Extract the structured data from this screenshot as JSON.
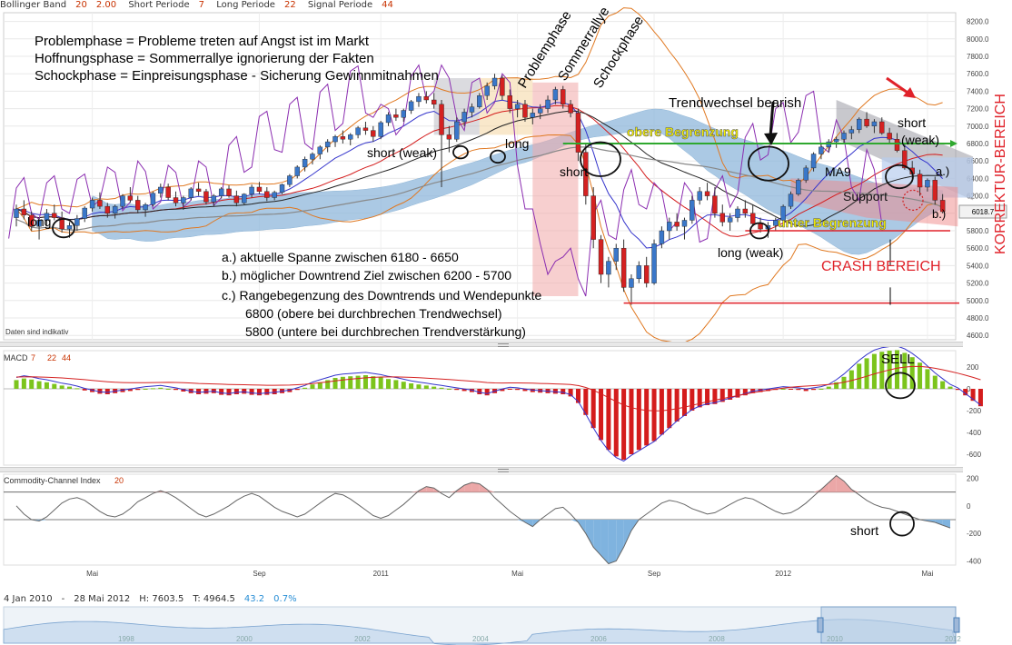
{
  "header": {
    "boll_label": "Bollinger Band",
    "boll_p1": "20",
    "boll_p2": "2.00",
    "short_label": "Short Periode",
    "short_val": "7",
    "long_label": "Long Periode",
    "long_val": "22",
    "signal_label": "Signal Periode",
    "signal_val": "44"
  },
  "colors": {
    "up": "#3a77c9",
    "down": "#d42121",
    "cloud": "#8fb8dc",
    "macd_pos": "#7cc41c",
    "macd_neg": "#d41c1c",
    "cci_pos": "#eba7a7",
    "cci_neg": "#7fb3df",
    "bb_outer": "#e07820",
    "bb_mid": "#d41c1c",
    "ma_blue": "#3535cc",
    "ma_black": "#222222",
    "purple": "#8b2db0",
    "gray": "#888888",
    "annot_red": "#e0222a",
    "annot_yellow": "#f6f200",
    "annot_green": "#2fa82f"
  },
  "chart_data": [
    {
      "type": "candlestick",
      "title": "",
      "y_ticks": [
        8200,
        8000,
        7800,
        7600,
        7400,
        7200,
        7000,
        6800,
        6600,
        6400,
        6200,
        6000,
        5800,
        5600,
        5400,
        5200,
        5000,
        4800,
        4600
      ],
      "ylim": [
        4550,
        8300
      ],
      "last_price": "6018.7",
      "watermark": "Daten sind indikativ",
      "x_labels": [
        "Mai",
        "Sep",
        "2011",
        "Mai",
        "Sep",
        "2012",
        "Mai"
      ],
      "series_ohlc": [
        [
          5950,
          6100,
          5850,
          6050
        ],
        [
          6050,
          6150,
          5930,
          5980
        ],
        [
          5980,
          6020,
          5800,
          5850
        ],
        [
          5850,
          5950,
          5700,
          5920
        ],
        [
          5920,
          6050,
          5860,
          6000
        ],
        [
          6000,
          6100,
          5920,
          5950
        ],
        [
          5950,
          6020,
          5780,
          5820
        ],
        [
          5820,
          5900,
          5720,
          5860
        ],
        [
          5860,
          5980,
          5800,
          5940
        ],
        [
          5940,
          6080,
          5900,
          6060
        ],
        [
          6060,
          6180,
          6020,
          6150
        ],
        [
          6150,
          6240,
          6050,
          6080
        ],
        [
          6080,
          6120,
          5950,
          6000
        ],
        [
          6000,
          6100,
          5940,
          6080
        ],
        [
          6080,
          6220,
          6050,
          6200
        ],
        [
          6200,
          6300,
          6120,
          6150
        ],
        [
          6150,
          6200,
          6000,
          6040
        ],
        [
          6040,
          6120,
          5960,
          6100
        ],
        [
          6100,
          6250,
          6080,
          6230
        ],
        [
          6230,
          6340,
          6180,
          6300
        ],
        [
          6300,
          6340,
          6150,
          6180
        ],
        [
          6180,
          6250,
          6080,
          6120
        ],
        [
          6120,
          6200,
          6040,
          6180
        ],
        [
          6180,
          6300,
          6150,
          6280
        ],
        [
          6280,
          6350,
          6200,
          6250
        ],
        [
          6250,
          6280,
          6100,
          6130
        ],
        [
          6130,
          6220,
          6080,
          6200
        ],
        [
          6200,
          6300,
          6170,
          6280
        ],
        [
          6280,
          6320,
          6180,
          6200
        ],
        [
          6200,
          6260,
          6080,
          6120
        ],
        [
          6120,
          6230,
          6100,
          6220
        ],
        [
          6220,
          6330,
          6180,
          6300
        ],
        [
          6300,
          6360,
          6220,
          6250
        ],
        [
          6250,
          6300,
          6140,
          6180
        ],
        [
          6180,
          6260,
          6150,
          6240
        ],
        [
          6240,
          6340,
          6220,
          6330
        ],
        [
          6330,
          6450,
          6300,
          6430
        ],
        [
          6430,
          6550,
          6400,
          6530
        ],
        [
          6530,
          6650,
          6480,
          6620
        ],
        [
          6620,
          6700,
          6560,
          6680
        ],
        [
          6680,
          6780,
          6620,
          6760
        ],
        [
          6760,
          6850,
          6700,
          6820
        ],
        [
          6820,
          6900,
          6760,
          6880
        ],
        [
          6880,
          6950,
          6800,
          6850
        ],
        [
          6850,
          6920,
          6780,
          6900
        ],
        [
          6900,
          7000,
          6860,
          6980
        ],
        [
          6980,
          7050,
          6900,
          6950
        ],
        [
          6950,
          7000,
          6820,
          6880
        ],
        [
          6880,
          7060,
          6850,
          7040
        ],
        [
          7040,
          7160,
          7000,
          7130
        ],
        [
          7130,
          7200,
          7060,
          7100
        ],
        [
          7100,
          7200,
          7050,
          7180
        ],
        [
          7180,
          7300,
          7140,
          7280
        ],
        [
          7280,
          7380,
          7220,
          7340
        ],
        [
          7340,
          7400,
          7260,
          7300
        ],
        [
          7300,
          7380,
          7200,
          7250
        ],
        [
          7250,
          7300,
          6300,
          6900
        ],
        [
          6900,
          7000,
          6700,
          6850
        ],
        [
          6850,
          7100,
          6820,
          7050
        ],
        [
          7050,
          7200,
          7000,
          7160
        ],
        [
          7160,
          7260,
          7100,
          7220
        ],
        [
          7220,
          7380,
          7200,
          7350
        ],
        [
          7350,
          7500,
          7300,
          7460
        ],
        [
          7460,
          7600,
          7420,
          7550
        ],
        [
          7550,
          7580,
          7300,
          7350
        ],
        [
          7350,
          7420,
          7150,
          7200
        ],
        [
          7200,
          7300,
          7100,
          7250
        ],
        [
          7250,
          7300,
          7050,
          7100
        ],
        [
          7100,
          7200,
          7020,
          7150
        ],
        [
          7150,
          7250,
          7080,
          7200
        ],
        [
          7200,
          7350,
          7150,
          7300
        ],
        [
          7300,
          7450,
          7250,
          7420
        ],
        [
          7420,
          7460,
          7200,
          7250
        ],
        [
          7250,
          7300,
          7100,
          7150
        ],
        [
          7150,
          7200,
          6600,
          6700
        ],
        [
          6700,
          6800,
          6100,
          6200
        ],
        [
          6200,
          6300,
          5600,
          5700
        ],
        [
          5700,
          5750,
          5200,
          5300
        ],
        [
          5300,
          5500,
          5150,
          5450
        ],
        [
          5450,
          5650,
          5350,
          5600
        ],
        [
          5600,
          5700,
          5100,
          5150
        ],
        [
          5150,
          5300,
          4950,
          5250
        ],
        [
          5250,
          5450,
          5200,
          5400
        ],
        [
          5400,
          5500,
          5150,
          5200
        ],
        [
          5200,
          5700,
          5180,
          5650
        ],
        [
          5650,
          5850,
          5600,
          5800
        ],
        [
          5800,
          5950,
          5700,
          5900
        ],
        [
          5900,
          6000,
          5800,
          5850
        ],
        [
          5850,
          5950,
          5700,
          5920
        ],
        [
          5920,
          6200,
          5880,
          6150
        ],
        [
          6150,
          6300,
          6100,
          6250
        ],
        [
          6250,
          6350,
          6150,
          6200
        ],
        [
          6200,
          6300,
          5950,
          6000
        ],
        [
          6000,
          6100,
          5850,
          5900
        ],
        [
          5900,
          6000,
          5800,
          5950
        ],
        [
          5950,
          6080,
          5900,
          6050
        ],
        [
          6050,
          6150,
          5950,
          6000
        ],
        [
          6000,
          6100,
          5850,
          5880
        ],
        [
          5880,
          5950,
          5780,
          5820
        ],
        [
          5820,
          5900,
          5720,
          5860
        ],
        [
          5860,
          5950,
          5800,
          5920
        ],
        [
          5920,
          6100,
          5900,
          6080
        ],
        [
          6080,
          6250,
          6050,
          6220
        ],
        [
          6220,
          6400,
          6200,
          6380
        ],
        [
          6380,
          6550,
          6350,
          6520
        ],
        [
          6520,
          6700,
          6480,
          6680
        ],
        [
          6680,
          6800,
          6620,
          6760
        ],
        [
          6760,
          6850,
          6700,
          6820
        ],
        [
          6820,
          6880,
          6750,
          6850
        ],
        [
          6850,
          6950,
          6800,
          6920
        ],
        [
          6920,
          7000,
          6850,
          6960
        ],
        [
          6960,
          7100,
          6920,
          7080
        ],
        [
          7080,
          7160,
          6980,
          7000
        ],
        [
          7000,
          7080,
          6920,
          7050
        ],
        [
          7050,
          7100,
          6900,
          6920
        ],
        [
          6920,
          6980,
          6800,
          6850
        ],
        [
          6850,
          6920,
          6700,
          6720
        ],
        [
          6720,
          6800,
          6500,
          6520
        ],
        [
          6520,
          6600,
          6400,
          6450
        ],
        [
          6450,
          6500,
          6200,
          6300
        ],
        [
          6300,
          6400,
          6250,
          6380
        ],
        [
          6380,
          6420,
          6100,
          6150
        ],
        [
          6150,
          6220,
          6000,
          6018.7
        ]
      ]
    },
    {
      "type": "bar",
      "title": "MACD",
      "params": [
        "7",
        "22",
        "44"
      ],
      "y_ticks": [
        200,
        0,
        -200,
        -400,
        -600
      ],
      "ylim": [
        -700,
        350
      ],
      "values": [
        80,
        95,
        85,
        70,
        60,
        45,
        30,
        20,
        5,
        -15,
        -30,
        -45,
        -50,
        -40,
        -30,
        -20,
        -10,
        0,
        5,
        10,
        0,
        -10,
        -25,
        -40,
        -50,
        -45,
        -40,
        -55,
        -60,
        -50,
        -45,
        -55,
        -60,
        -55,
        -50,
        -40,
        -30,
        -10,
        10,
        40,
        60,
        80,
        100,
        110,
        115,
        120,
        125,
        115,
        105,
        90,
        80,
        65,
        50,
        40,
        30,
        20,
        10,
        0,
        -10,
        -20,
        -30,
        -50,
        -60,
        -40,
        -20,
        -5,
        -10,
        -20,
        -30,
        -35,
        -40,
        -45,
        -50,
        -70,
        -130,
        -240,
        -360,
        -470,
        -560,
        -620,
        -650,
        -600,
        -560,
        -520,
        -480,
        -420,
        -360,
        -300,
        -250,
        -200,
        -170,
        -150,
        -140,
        -120,
        -100,
        -80,
        -60,
        -40,
        -30,
        -20,
        -10,
        0,
        -5,
        -10,
        -20,
        -10,
        0,
        20,
        60,
        110,
        170,
        230,
        280,
        320,
        340,
        350,
        355,
        330,
        290,
        240,
        180,
        120,
        70,
        20,
        -10,
        -60,
        -110,
        -160
      ]
    },
    {
      "type": "area",
      "title": "Commodity-Channel Index",
      "param": "20",
      "y_ticks": [
        200,
        0,
        -200,
        -400
      ],
      "ylim": [
        -430,
        230
      ],
      "values": [
        0,
        -60,
        -100,
        -110,
        -80,
        -30,
        20,
        50,
        60,
        40,
        0,
        -40,
        -70,
        -80,
        -60,
        -20,
        30,
        60,
        90,
        110,
        90,
        60,
        20,
        -20,
        -60,
        -80,
        -60,
        -30,
        0,
        40,
        70,
        90,
        70,
        30,
        -10,
        -40,
        -60,
        -80,
        -60,
        -20,
        20,
        60,
        90,
        80,
        50,
        10,
        -30,
        -70,
        -90,
        -70,
        -30,
        10,
        60,
        110,
        140,
        130,
        90,
        60,
        110,
        150,
        170,
        160,
        120,
        60,
        10,
        -40,
        -80,
        -120,
        -150,
        -100,
        -60,
        -20,
        -10,
        -60,
        -120,
        -200,
        -300,
        -360,
        -420,
        -400,
        -300,
        -180,
        -100,
        -60,
        -20,
        20,
        40,
        30,
        10,
        -20,
        -40,
        -60,
        -50,
        -20,
        10,
        40,
        60,
        50,
        20,
        -10,
        -40,
        -60,
        -50,
        -20,
        20,
        70,
        120,
        170,
        220,
        180,
        120,
        80,
        40,
        10,
        -10,
        -20,
        -40,
        -60,
        -80,
        -100,
        -110,
        -120,
        -140,
        -160
      ]
    }
  ],
  "lower_labels": {
    "ma9": "MA9",
    "support": "Support"
  },
  "annotations": {
    "line1": "Problemphase = Probleme treten auf Angst ist im Markt",
    "line2": "Hoffnungsphase = Sommerrallye ignorierung der Fakten",
    "line3": "Schockphase = Einpreisungsphase - Sicherung Gewinnmitnahmen",
    "problemphase": "Problemphase",
    "sommerrallye": "Sommerrallye",
    "schockphase": "Schockphase",
    "trendwechsel": "Trendwechsel bearish",
    "obere": "obere Begrenzung",
    "untere": "unter Begrenzung",
    "short_weak_1": "short (weak)",
    "long_1": "long",
    "long_2": "long",
    "short_1": "short",
    "long_weak": "long (weak)",
    "short_right": "short",
    "weak_right": "(weak)",
    "a_label": "a.)",
    "b_label": "b.)",
    "korrektur": "KORREKTUR-BEREICH",
    "crash": "CRASH BEREICH",
    "note_a": "a.) aktuelle  Spanne zwischen 6180 - 6650",
    "note_b": "b.) möglicher Downtrend Ziel zwischen 6200 - 5700",
    "note_c1": "c.) Rangebegenzung des Downtrends und Wendepunkte",
    "note_c2": "6800 (obere bei durchbrechen Trendwechsel)",
    "note_c3": "5800 (untere bei durchbrechen Trendverstärkung)",
    "sell": "SELL",
    "cci_short": "short"
  },
  "range_bar": {
    "start": "4 Jan 2010",
    "dash": "-",
    "end": "28 Mai 2012",
    "h": "H: 7603.5",
    "t": "T: 4964.5",
    "chg": "43.2",
    "pct": "0.7%",
    "years": [
      "1998",
      "2000",
      "2002",
      "2004",
      "2006",
      "2008",
      "2010",
      "2012"
    ]
  }
}
